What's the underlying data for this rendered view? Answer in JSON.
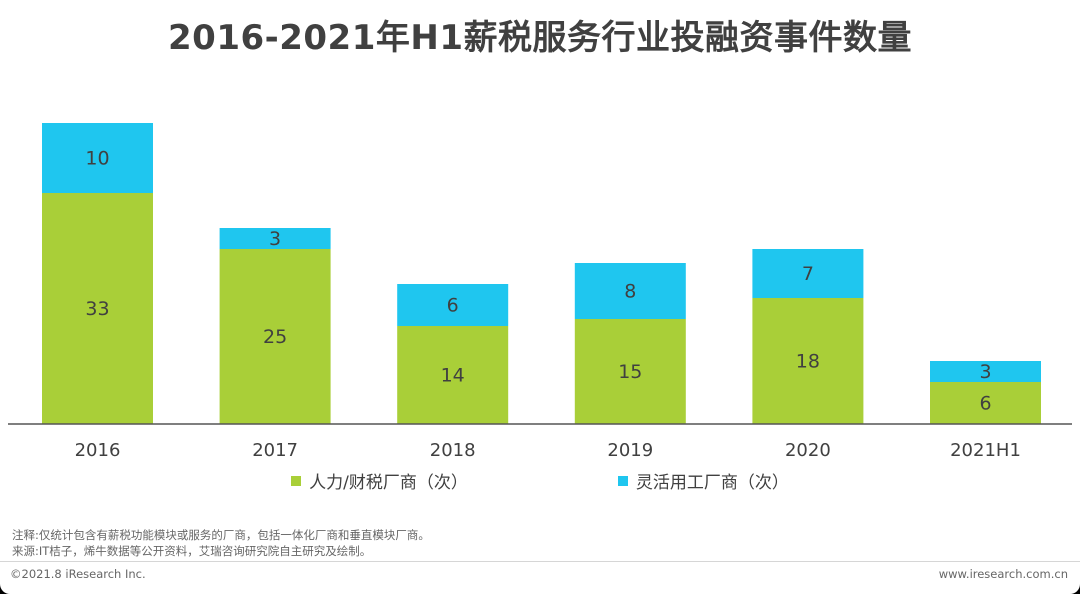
{
  "title": "2016-2021年H1薪税服务行业投融资事件数量",
  "colors": {
    "hr": "#a9cf38",
    "flex": "#1fc6ef",
    "axis": "#555555"
  },
  "chart_data": {
    "type": "bar",
    "stacked": true,
    "title": "2016-2021年H1薪税服务行业投融资事件数量",
    "categories": [
      "2016",
      "2017",
      "2018",
      "2019",
      "2020",
      "2021H1"
    ],
    "series": [
      {
        "name": "人力/财税厂商（次）",
        "values": [
          33,
          25,
          14,
          15,
          18,
          6
        ]
      },
      {
        "name": "灵活用工厂商（次）",
        "values": [
          10,
          3,
          6,
          8,
          7,
          3
        ]
      }
    ],
    "ylim": [
      0,
      45
    ],
    "legend": "bottom",
    "grid": false
  },
  "notes": {
    "note": "注释:仅统计包含有薪税功能模块或服务的厂商，包括一体化厂商和垂直模块厂商。",
    "source": "来源:IT桔子，烯牛数据等公开资料，艾瑞咨询研究院自主研究及绘制。"
  },
  "footer": {
    "copyright": "©2021.8 iResearch Inc.",
    "website": "www.iresearch.com.cn"
  }
}
